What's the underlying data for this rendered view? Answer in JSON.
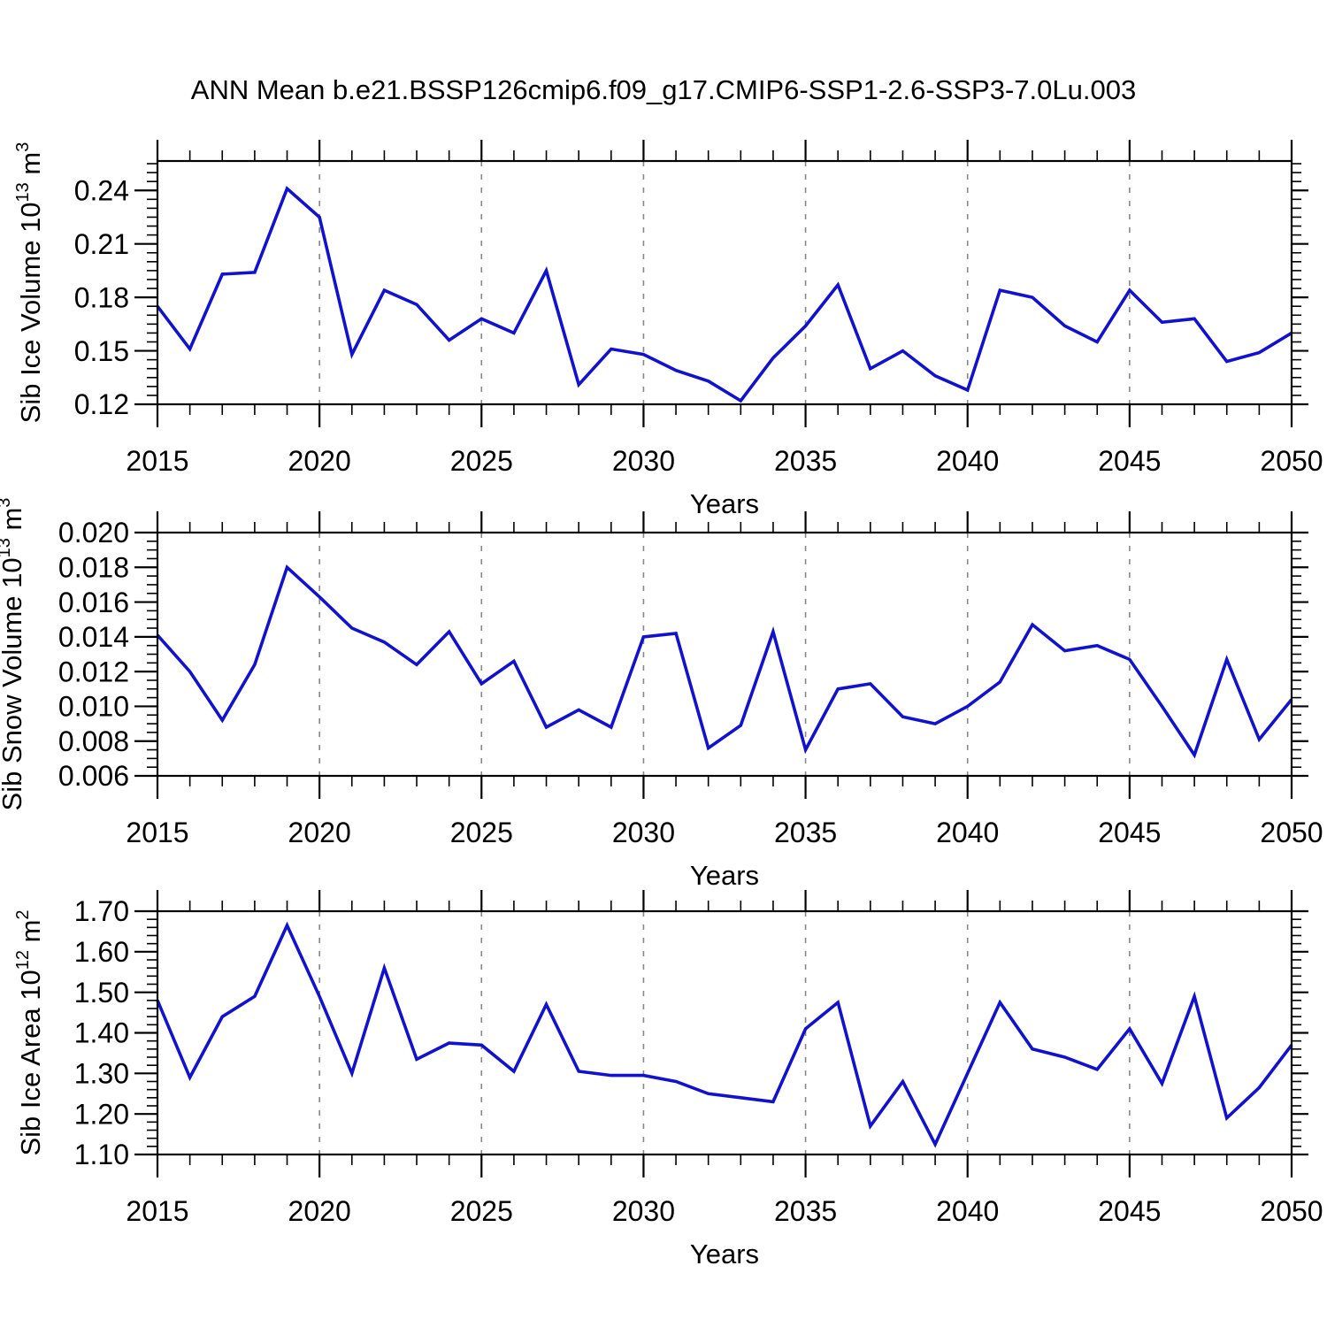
{
  "title": "ANN Mean b.e21.BSSP126cmip6.f09_g17.CMIP6-SSP1-2.6-SSP3-7.0Lu.003",
  "colors": {
    "line": "#1111d1",
    "grid": "#888888",
    "frame": "#000000",
    "text": "#000000"
  },
  "chart_data": [
    {
      "type": "line",
      "ylabel": "Sib Ice Volume 10¹³ m³",
      "ylabel_parts": [
        {
          "t": "Sib Ice Volume 10"
        },
        {
          "t": "13",
          "sup": true
        },
        {
          "t": " m"
        },
        {
          "t": "3",
          "sup": true
        }
      ],
      "xlabel": "Years",
      "x": [
        2015,
        2016,
        2017,
        2018,
        2019,
        2020,
        2021,
        2022,
        2023,
        2024,
        2025,
        2026,
        2027,
        2028,
        2029,
        2030,
        2031,
        2032,
        2033,
        2034,
        2035,
        2036,
        2037,
        2038,
        2039,
        2040,
        2041,
        2042,
        2043,
        2044,
        2045,
        2046,
        2047,
        2048,
        2049,
        2050
      ],
      "values": [
        0.175,
        0.151,
        0.193,
        0.194,
        0.241,
        0.225,
        0.148,
        0.184,
        0.176,
        0.156,
        0.168,
        0.16,
        0.195,
        0.131,
        0.151,
        0.148,
        0.139,
        0.133,
        0.122,
        0.146,
        0.164,
        0.187,
        0.14,
        0.15,
        0.136,
        0.128,
        0.184,
        0.18,
        0.164,
        0.155,
        0.184,
        0.166,
        0.168,
        0.144,
        0.149,
        0.16
      ],
      "xlim": [
        2015,
        2050
      ],
      "ylim": [
        0.12,
        0.2565
      ],
      "yticks": [
        0.12,
        0.15,
        0.18,
        0.21,
        0.24
      ],
      "ytick_labels": [
        "0.12",
        "0.15",
        "0.18",
        "0.21",
        "0.24"
      ],
      "yminor_step": 0.005,
      "xticks": [
        2015,
        2020,
        2025,
        2030,
        2035,
        2040,
        2045,
        2050
      ],
      "xtick_labels": [
        "2015",
        "2020",
        "2025",
        "2030",
        "2035",
        "2040",
        "2045",
        "2050"
      ],
      "xminor_step": 1,
      "gridlines": [
        2020,
        2025,
        2030,
        2035,
        2040,
        2045
      ],
      "grid": "vertical-dashed",
      "legend": "none"
    },
    {
      "type": "line",
      "ylabel": "Sib Snow Volume 10¹³ m³",
      "ylabel_parts": [
        {
          "t": "Sib Snow Volume 10"
        },
        {
          "t": "13",
          "sup": true
        },
        {
          "t": " m"
        },
        {
          "t": "3",
          "sup": true
        }
      ],
      "xlabel": "Years",
      "x": [
        2015,
        2016,
        2017,
        2018,
        2019,
        2020,
        2021,
        2022,
        2023,
        2024,
        2025,
        2026,
        2027,
        2028,
        2029,
        2030,
        2031,
        2032,
        2033,
        2034,
        2035,
        2036,
        2037,
        2038,
        2039,
        2040,
        2041,
        2042,
        2043,
        2044,
        2045,
        2046,
        2047,
        2048,
        2049,
        2050
      ],
      "values": [
        0.0141,
        0.012,
        0.0092,
        0.0124,
        0.018,
        0.0163,
        0.0145,
        0.0137,
        0.0124,
        0.0143,
        0.0113,
        0.0126,
        0.0088,
        0.0098,
        0.0088,
        0.014,
        0.0142,
        0.0076,
        0.0089,
        0.0143,
        0.0075,
        0.011,
        0.0113,
        0.0094,
        0.009,
        0.01,
        0.0114,
        0.0147,
        0.0132,
        0.0135,
        0.0127,
        0.01,
        0.0072,
        0.0127,
        0.0081,
        0.0104
      ],
      "xlim": [
        2015,
        2050
      ],
      "ylim": [
        0.006,
        0.02
      ],
      "yticks": [
        0.006,
        0.008,
        0.01,
        0.012,
        0.014,
        0.016,
        0.018,
        0.02
      ],
      "ytick_labels": [
        "0.006",
        "0.008",
        "0.010",
        "0.012",
        "0.014",
        "0.016",
        "0.018",
        "0.020"
      ],
      "yminor_step": 0.0005,
      "xticks": [
        2015,
        2020,
        2025,
        2030,
        2035,
        2040,
        2045,
        2050
      ],
      "xtick_labels": [
        "2015",
        "2020",
        "2025",
        "2030",
        "2035",
        "2040",
        "2045",
        "2050"
      ],
      "xminor_step": 1,
      "gridlines": [
        2020,
        2025,
        2030,
        2035,
        2040,
        2045
      ],
      "grid": "vertical-dashed",
      "legend": "none"
    },
    {
      "type": "line",
      "ylabel": "Sib Ice Area 10¹² m²",
      "ylabel_parts": [
        {
          "t": "Sib Ice Area 10"
        },
        {
          "t": "12",
          "sup": true
        },
        {
          "t": " m"
        },
        {
          "t": "2",
          "sup": true
        }
      ],
      "xlabel": "Years",
      "x": [
        2015,
        2016,
        2017,
        2018,
        2019,
        2020,
        2021,
        2022,
        2023,
        2024,
        2025,
        2026,
        2027,
        2028,
        2029,
        2030,
        2031,
        2032,
        2033,
        2034,
        2035,
        2036,
        2037,
        2038,
        2039,
        2040,
        2041,
        2042,
        2043,
        2044,
        2045,
        2046,
        2047,
        2048,
        2049,
        2050
      ],
      "values": [
        1.48,
        1.29,
        1.44,
        1.49,
        1.665,
        1.49,
        1.3,
        1.56,
        1.335,
        1.375,
        1.37,
        1.305,
        1.47,
        1.305,
        1.295,
        1.295,
        1.28,
        1.25,
        1.24,
        1.23,
        1.41,
        1.475,
        1.17,
        1.28,
        1.125,
        1.3,
        1.475,
        1.36,
        1.34,
        1.31,
        1.41,
        1.275,
        1.49,
        1.19,
        1.265,
        1.37
      ],
      "xlim": [
        2015,
        2050
      ],
      "ylim": [
        1.1,
        1.7
      ],
      "yticks": [
        1.1,
        1.2,
        1.3,
        1.4,
        1.5,
        1.6,
        1.7
      ],
      "ytick_labels": [
        "1.10",
        "1.20",
        "1.30",
        "1.40",
        "1.50",
        "1.60",
        "1.70"
      ],
      "yminor_step": 0.02,
      "xticks": [
        2015,
        2020,
        2025,
        2030,
        2035,
        2040,
        2045,
        2050
      ],
      "xtick_labels": [
        "2015",
        "2020",
        "2025",
        "2030",
        "2035",
        "2040",
        "2045",
        "2050"
      ],
      "xminor_step": 1,
      "gridlines": [
        2020,
        2025,
        2030,
        2035,
        2040,
        2045
      ],
      "grid": "vertical-dashed",
      "legend": "none"
    }
  ]
}
